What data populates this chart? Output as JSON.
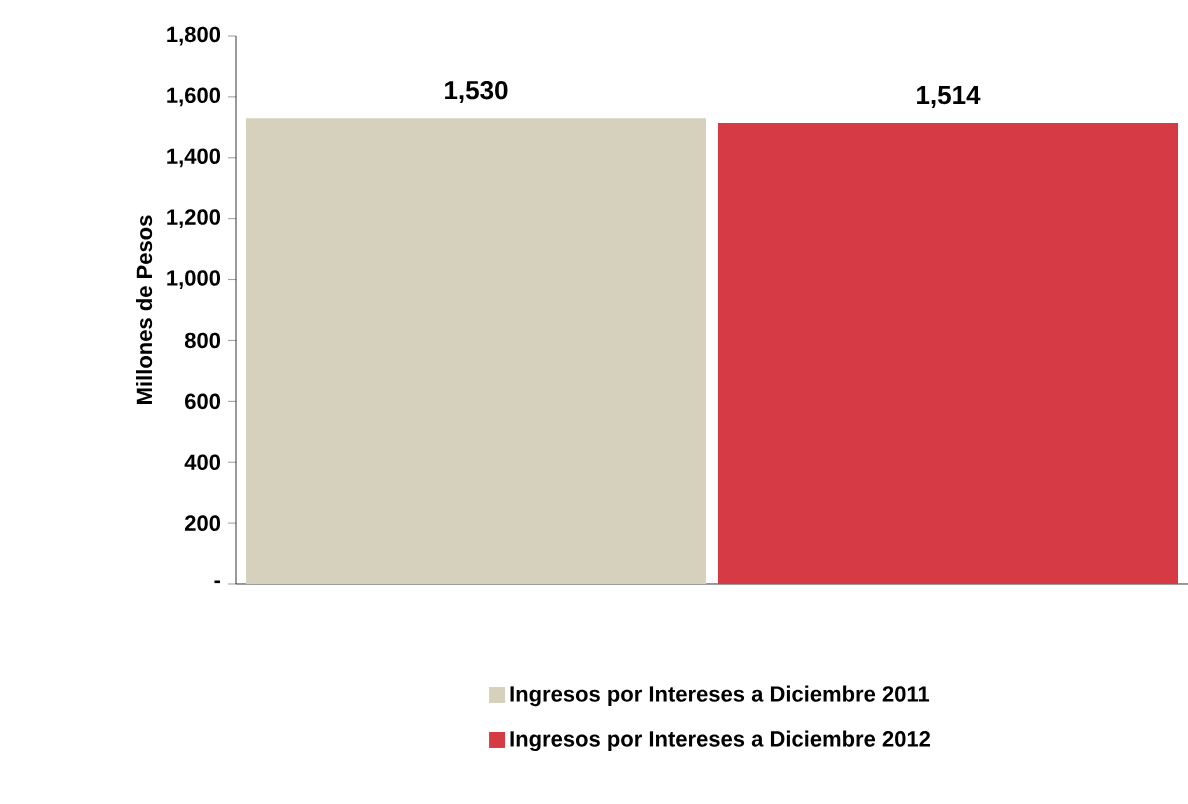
{
  "chart_data": {
    "type": "bar",
    "ylabel": "Millones de Pesos",
    "categories": [
      null
    ],
    "series": [
      {
        "name": "Ingresos por Intereses a Diciembre 2011",
        "color": "#d6d1bc",
        "values": [
          1530
        ],
        "value_labels": [
          "1,530"
        ]
      },
      {
        "name": "Ingresos por Intereses a Diciembre 2012",
        "color": "#d63a44",
        "values": [
          1514
        ],
        "value_labels": [
          "1,514"
        ]
      }
    ],
    "ylim": [
      0,
      1800
    ],
    "yticks": [
      {
        "value": 0,
        "label": "-"
      },
      200,
      400,
      600,
      800,
      {
        "value": 1000,
        "label": "1,000"
      },
      {
        "value": 1200,
        "label": "1,200"
      },
      {
        "value": 1400,
        "label": "1,400"
      },
      {
        "value": 1600,
        "label": "1,600"
      },
      {
        "value": 1800,
        "label": "1,800"
      }
    ],
    "tick_labels": "y",
    "grid": false,
    "legend": "bottom"
  }
}
